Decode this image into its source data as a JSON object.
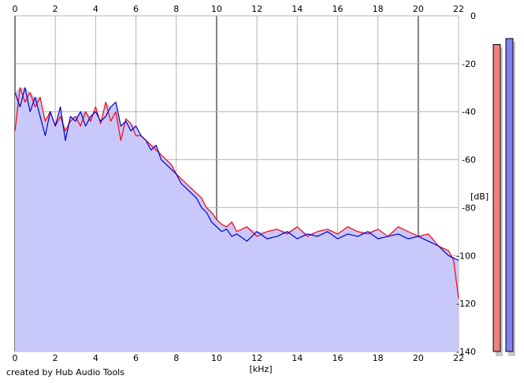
{
  "credit": "created by Hub Audio Tools",
  "chart_data": {
    "type": "line",
    "xlabel": "[kHz]",
    "ylabel": "[dB]",
    "xlim": [
      0,
      22
    ],
    "ylim": [
      -140,
      0
    ],
    "x_ticks": [
      0,
      2,
      4,
      6,
      8,
      10,
      12,
      14,
      16,
      18,
      20,
      22
    ],
    "y_ticks": [
      0,
      -20,
      -40,
      -60,
      -80,
      -100,
      -120,
      -140
    ],
    "grid": true,
    "fill_color": "#c8c8fa",
    "series": [
      {
        "color": "#ff0000",
        "x": [
          0,
          0.25,
          0.5,
          0.75,
          1,
          1.25,
          1.5,
          1.75,
          2,
          2.25,
          2.5,
          2.75,
          3,
          3.25,
          3.5,
          3.75,
          4,
          4.25,
          4.5,
          4.75,
          5,
          5.25,
          5.5,
          5.75,
          6,
          6.25,
          6.5,
          6.75,
          7,
          7.25,
          7.5,
          7.75,
          8,
          8.25,
          8.5,
          8.75,
          9,
          9.25,
          9.5,
          9.75,
          10,
          10.25,
          10.5,
          10.75,
          11,
          11.5,
          12,
          12.5,
          13,
          13.5,
          14,
          14.5,
          15,
          15.5,
          16,
          16.5,
          17,
          17.5,
          18,
          18.5,
          19,
          19.5,
          20,
          20.5,
          21,
          21.5,
          21.75,
          22
        ],
        "y": [
          -48,
          -30,
          -36,
          -32,
          -38,
          -34,
          -44,
          -40,
          -46,
          -42,
          -48,
          -44,
          -42,
          -46,
          -40,
          -44,
          -38,
          -45,
          -36,
          -44,
          -40,
          -52,
          -43,
          -45,
          -50,
          -50,
          -52,
          -54,
          -56,
          -58,
          -60,
          -62,
          -66,
          -68,
          -70,
          -72,
          -74,
          -76,
          -80,
          -82,
          -85,
          -87,
          -88,
          -86,
          -90,
          -88,
          -92,
          -90,
          -89,
          -91,
          -88,
          -92,
          -90,
          -89,
          -91,
          -88,
          -90,
          -91,
          -89,
          -92,
          -88,
          -90,
          -92,
          -91,
          -96,
          -98,
          -102,
          -118
        ]
      },
      {
        "color": "#0000cc",
        "x": [
          0,
          0.25,
          0.5,
          0.75,
          1,
          1.25,
          1.5,
          1.75,
          2,
          2.25,
          2.5,
          2.75,
          3,
          3.25,
          3.5,
          3.75,
          4,
          4.25,
          4.5,
          4.75,
          5,
          5.25,
          5.5,
          5.75,
          6,
          6.25,
          6.5,
          6.75,
          7,
          7.25,
          7.5,
          7.75,
          8,
          8.25,
          8.5,
          8.75,
          9,
          9.25,
          9.5,
          9.75,
          10,
          10.25,
          10.5,
          10.75,
          11,
          11.5,
          12,
          12.5,
          13,
          13.5,
          14,
          14.5,
          15,
          15.5,
          16,
          16.5,
          17,
          17.5,
          18,
          18.5,
          19,
          19.5,
          20,
          20.5,
          21,
          21.5,
          21.75,
          22
        ],
        "y": [
          -32,
          -38,
          -30,
          -40,
          -34,
          -42,
          -50,
          -40,
          -46,
          -38,
          -52,
          -42,
          -44,
          -40,
          -46,
          -42,
          -40,
          -44,
          -42,
          -38,
          -36,
          -46,
          -44,
          -48,
          -46,
          -50,
          -52,
          -56,
          -54,
          -60,
          -62,
          -64,
          -66,
          -70,
          -72,
          -74,
          -76,
          -80,
          -82,
          -86,
          -88,
          -90,
          -89,
          -92,
          -91,
          -94,
          -90,
          -93,
          -92,
          -90,
          -93,
          -91,
          -92,
          -90,
          -93,
          -91,
          -92,
          -90,
          -93,
          -92,
          -91,
          -93,
          -92,
          -94,
          -96,
          -100,
          -101,
          -102
        ]
      }
    ],
    "level_bars": [
      {
        "color": "#f08080",
        "value": -12
      },
      {
        "color": "#8080f0",
        "value": -9.5
      }
    ]
  }
}
